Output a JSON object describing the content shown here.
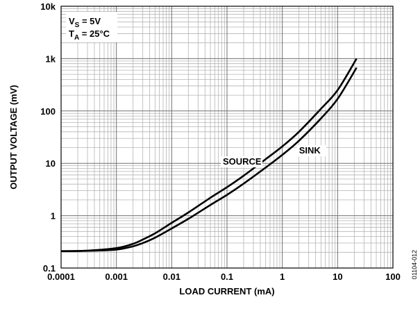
{
  "chart_data": {
    "type": "line",
    "xlabel": "LOAD CURRENT (mA)",
    "ylabel": "OUTPUT VOLTAGE (mV)",
    "x_scale": "log",
    "y_scale": "log",
    "xlim": [
      0.0001,
      100
    ],
    "ylim": [
      0.1,
      10000
    ],
    "x_ticks": [
      "0.0001",
      "0.001",
      "0.01",
      "0.1",
      "1",
      "10",
      "100"
    ],
    "y_ticks": [
      "0.1",
      "1",
      "10",
      "100",
      "1k",
      "10k"
    ],
    "grid": true,
    "legend": {
      "line1_main": "V",
      "line1_sub": "S",
      "line1_rest": " = 5V",
      "line2_main": "T",
      "line2_sub": "A",
      "line2_rest": " = 25°C"
    },
    "series": [
      {
        "name": "SOURCE",
        "x": [
          0.0001,
          0.0003,
          0.001,
          0.002,
          0.003,
          0.005,
          0.01,
          0.02,
          0.05,
          0.1,
          0.2,
          0.5,
          1,
          2,
          5,
          10,
          22
        ],
        "y": [
          0.21,
          0.215,
          0.24,
          0.29,
          0.35,
          0.46,
          0.73,
          1.15,
          2.2,
          3.5,
          5.8,
          12,
          21,
          40,
          110,
          250,
          1000
        ]
      },
      {
        "name": "SINK",
        "x": [
          0.0001,
          0.0003,
          0.001,
          0.002,
          0.003,
          0.005,
          0.01,
          0.02,
          0.05,
          0.1,
          0.2,
          0.5,
          1,
          2,
          5,
          10,
          22
        ],
        "y": [
          0.21,
          0.213,
          0.225,
          0.26,
          0.3,
          0.38,
          0.57,
          0.87,
          1.6,
          2.5,
          4.1,
          8.3,
          14.5,
          27,
          72,
          170,
          670
        ]
      }
    ]
  },
  "figure_id": "01104-012"
}
